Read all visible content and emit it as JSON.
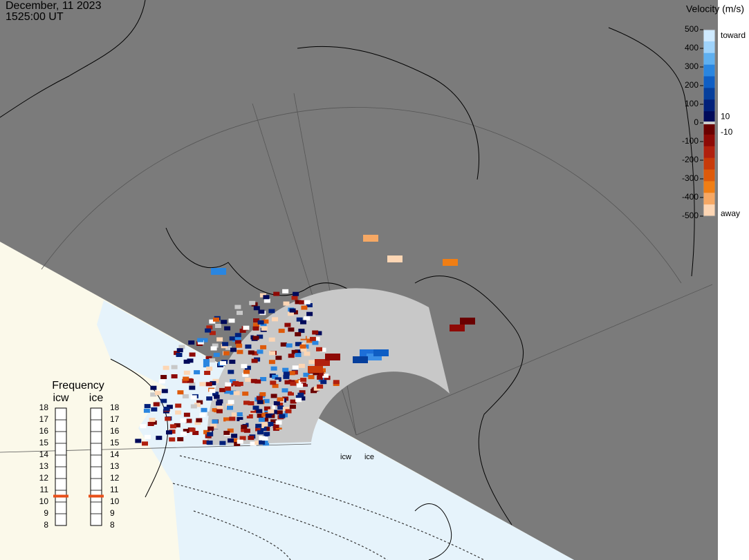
{
  "header": {
    "date": "December, 11 2023",
    "time": "1525:00 UT"
  },
  "colorbar": {
    "title": "Velocity (m/s)",
    "ticks": [
      500,
      400,
      300,
      200,
      100,
      0,
      -100,
      -200,
      -300,
      -400,
      -500
    ],
    "lim": [
      -500,
      500
    ],
    "small_ticks": [
      10,
      -10
    ],
    "top_label": "toward",
    "bottom_label": "away"
  },
  "frequency": {
    "title": "Frequency",
    "ticks": [
      8,
      9,
      10,
      11,
      12,
      13,
      14,
      15,
      16,
      17,
      18
    ],
    "lim": [
      8,
      18
    ],
    "columns": [
      {
        "name": "icw",
        "value": 10.5,
        "color": "#e8501a"
      },
      {
        "name": "ice",
        "value": 10.5,
        "color": "#e8501a"
      }
    ]
  },
  "radars": [
    "icw",
    "ice"
  ]
}
